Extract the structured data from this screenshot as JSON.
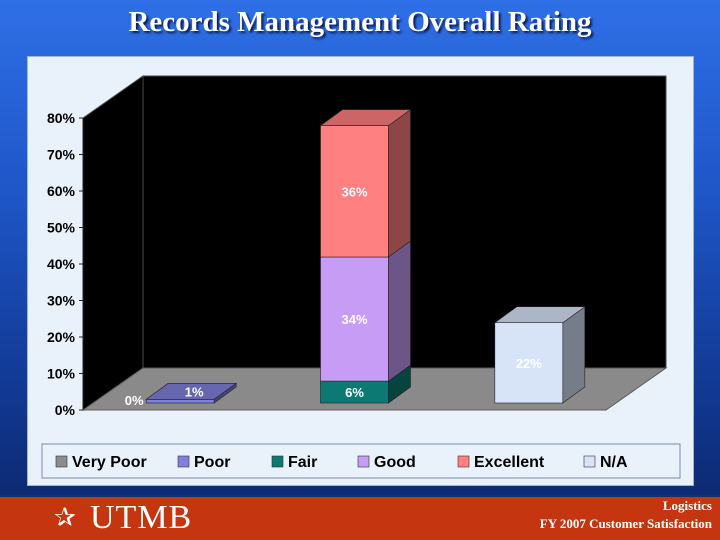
{
  "page": {
    "title": "Records Management Overall Rating"
  },
  "footer": {
    "logo_star": "✰",
    "logo": "UTMB",
    "department": "Logistics",
    "survey": "FY 2007 Customer Satisfaction"
  },
  "chart_data": {
    "type": "bar",
    "stacked": true,
    "three_d": true,
    "title": "",
    "ylim": [
      0,
      80
    ],
    "y_ticks": [
      "0%",
      "10%",
      "20%",
      "30%",
      "40%",
      "50%",
      "60%",
      "70%",
      "80%"
    ],
    "grid": false,
    "legend_position": "bottom",
    "legend": [
      "Very Poor",
      "Poor",
      "Fair",
      "Good",
      "Excellent",
      "N/A"
    ],
    "colors": {
      "Very Poor": "#8c8c8c",
      "Poor": "#7f7fdd",
      "Fair": "#0c7a72",
      "Good": "#c69cf5",
      "Excellent": "#ff8080",
      "N/A": "#d7e4f8"
    },
    "bars": [
      {
        "segments": [
          {
            "series": "Very Poor",
            "value": 0,
            "label": "0%"
          },
          {
            "series": "Poor",
            "value": 1,
            "label": "1%"
          }
        ]
      },
      {
        "segments": [
          {
            "series": "Fair",
            "value": 6,
            "label": "6%"
          },
          {
            "series": "Good",
            "value": 34,
            "label": "34%"
          },
          {
            "series": "Excellent",
            "value": 36,
            "label": "36%"
          }
        ]
      },
      {
        "segments": [
          {
            "series": "N/A",
            "value": 22,
            "label": "22%"
          }
        ]
      }
    ]
  }
}
